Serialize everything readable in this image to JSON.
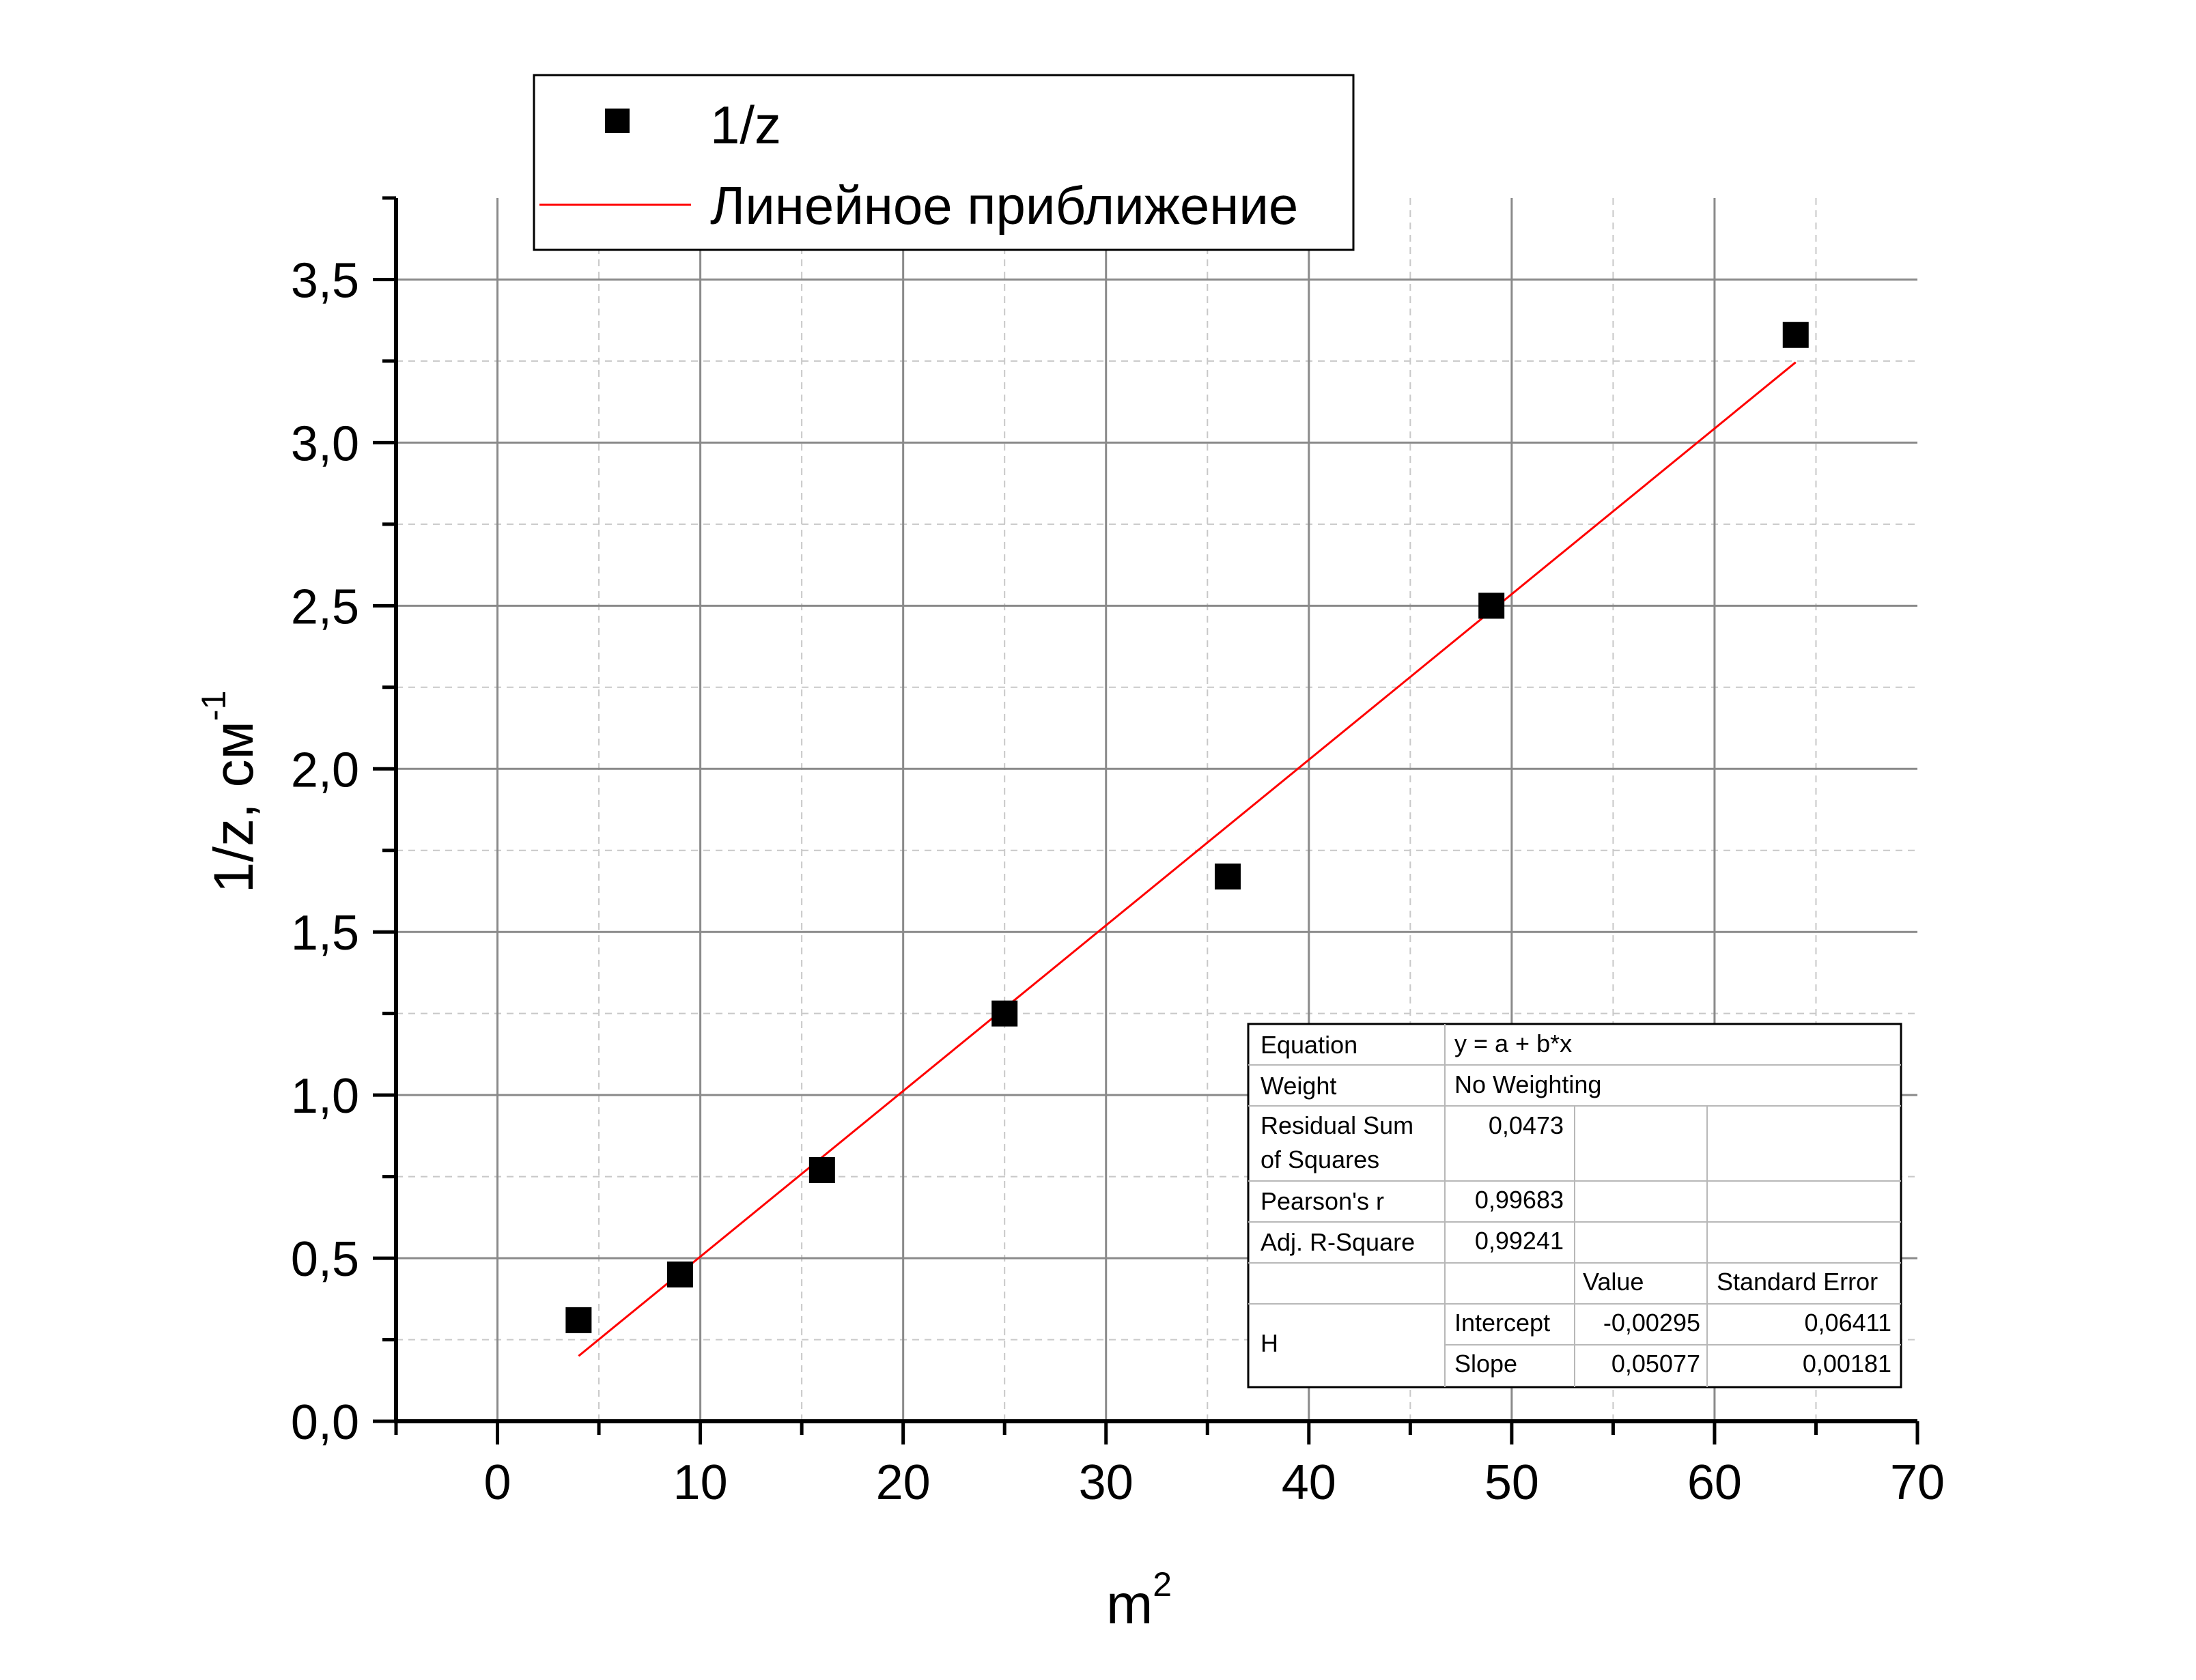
{
  "chart_data": {
    "type": "scatter",
    "xlabel": "m",
    "xlabel_sup": "2",
    "ylabel": "1/z, см",
    "ylabel_sup": "-1",
    "xlim": [
      -5,
      70
    ],
    "ylim": [
      0,
      3.75
    ],
    "x_ticks": [
      0,
      10,
      20,
      30,
      40,
      50,
      60,
      70
    ],
    "x_tick_labels": [
      "0",
      "10",
      "20",
      "30",
      "40",
      "50",
      "60",
      "70"
    ],
    "y_ticks": [
      0,
      0.5,
      1.0,
      1.5,
      2.0,
      2.5,
      3.0,
      3.5
    ],
    "y_tick_labels": [
      "0,0",
      "0,5",
      "1,0",
      "1,5",
      "2,0",
      "2,5",
      "3,0",
      "3,5"
    ],
    "grid": true,
    "legend": {
      "placement": "top-left",
      "entries": [
        {
          "label": "1/z",
          "marker": "square",
          "color": "#000000"
        },
        {
          "label": "Линейное приближение",
          "marker": "line",
          "color": "#ff0000"
        }
      ]
    },
    "series": [
      {
        "name": "1/z",
        "type": "scatter",
        "color": "#000000",
        "x": [
          4,
          9,
          16,
          25,
          36,
          49,
          64
        ],
        "y": [
          0.31,
          0.45,
          0.77,
          1.25,
          1.67,
          2.5,
          3.33
        ]
      },
      {
        "name": "Линейное приближение",
        "type": "line",
        "color": "#ff0000",
        "intercept": -0.00295,
        "slope": 0.05077,
        "x_range": [
          4,
          64
        ]
      }
    ],
    "fit_table": {
      "rows": [
        [
          "Equation",
          "y = a + b*x"
        ],
        [
          "Weight",
          "No Weighting"
        ],
        [
          "Residual Sum\nof Squares",
          "0,0473"
        ],
        [
          "Pearson's r",
          "0,99683"
        ],
        [
          "Adj. R-Square",
          "0,99241"
        ]
      ],
      "param_header": [
        "Value",
        "Standard Error"
      ],
      "group_label": "H",
      "params": [
        [
          "Intercept",
          "-0,00295",
          "0,06411"
        ],
        [
          "Slope",
          "0,05077",
          "0,00181"
        ]
      ]
    }
  }
}
